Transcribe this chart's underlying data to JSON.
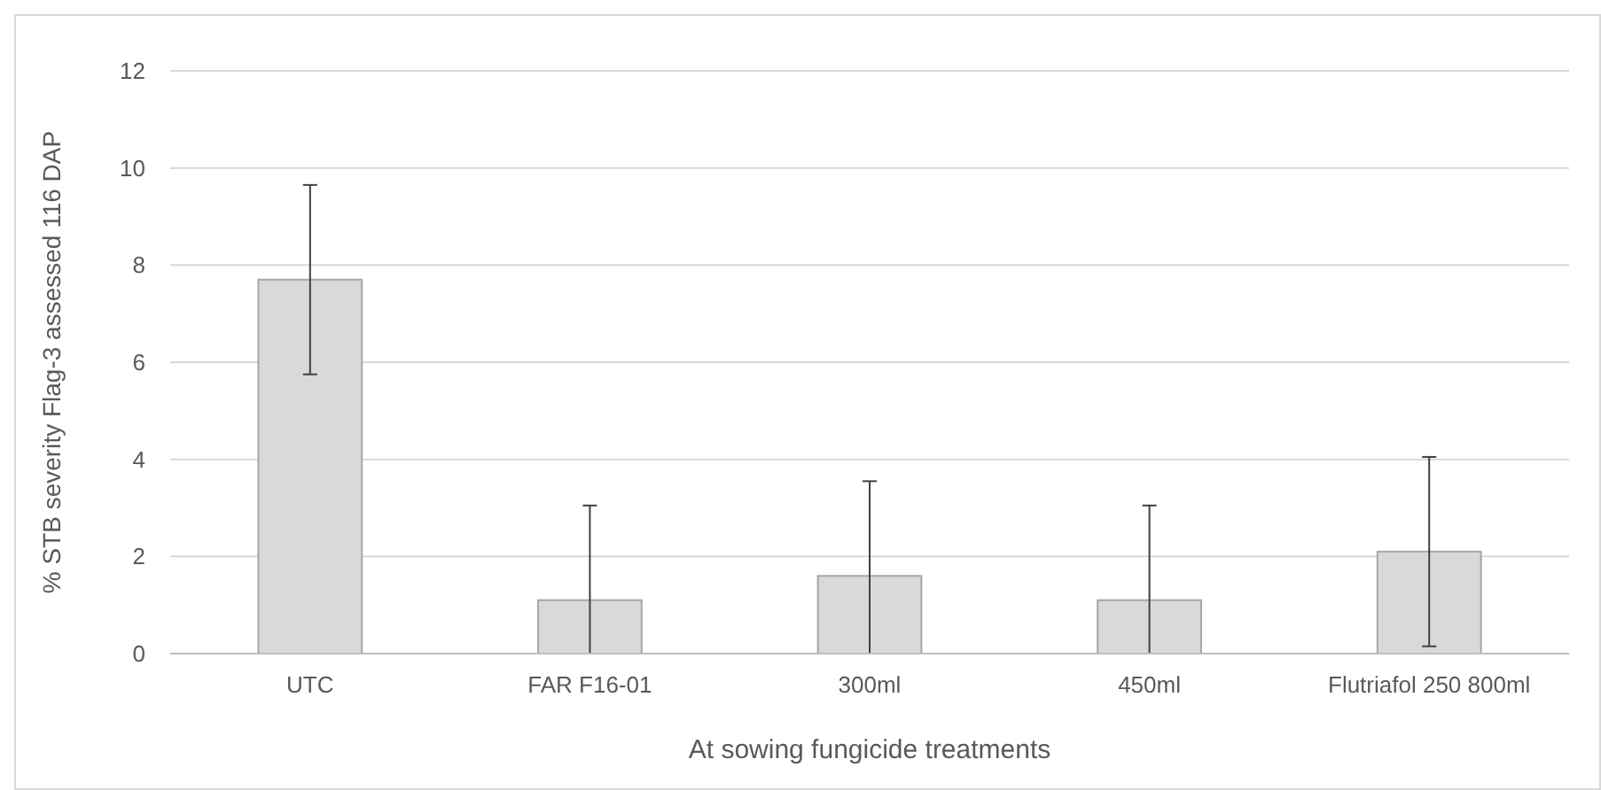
{
  "chart_data": {
    "type": "bar",
    "xlabel": "At sowing fungicide treatments",
    "ylabel": "% STB severity Flag-3 assessed 116 DAP",
    "categories": [
      "UTC",
      "FAR F16-01",
      "300ml",
      "450ml",
      "Flutriafol 250 800ml"
    ],
    "values": [
      7.7,
      1.1,
      1.6,
      1.1,
      2.1
    ],
    "errors": [
      [
        5.75,
        9.65
      ],
      [
        0,
        3.05
      ],
      [
        0,
        3.55
      ],
      [
        0,
        3.05
      ],
      [
        0.15,
        4.05
      ]
    ],
    "color": "#d9d9d9",
    "ylim": [
      0,
      12
    ],
    "yticks": [
      0,
      2,
      4,
      6,
      8,
      10,
      12
    ],
    "grid": "y"
  }
}
